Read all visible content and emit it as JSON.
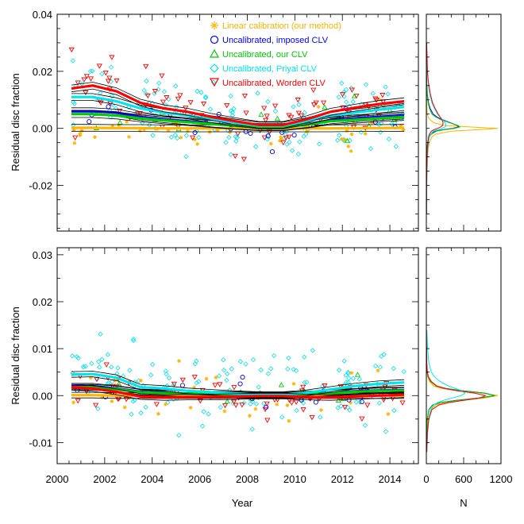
{
  "chart_data": [
    {
      "type": "scatter",
      "panel": "top",
      "title": "",
      "xlabel": "",
      "ylabel": "Residual disc fraction",
      "xlim": [
        2000,
        2015.2
      ],
      "ylim": [
        -0.036,
        0.04
      ],
      "yticks": [
        -0.02,
        0.0,
        0.02,
        0.04
      ],
      "ytick_labels": [
        "-0.02",
        "0.00",
        "0.02",
        "0.04"
      ],
      "legend_position": "top-center",
      "series": [
        {
          "name": "Linear calibration (our method)",
          "marker": "asterisk",
          "color": "#FFB400",
          "trend_x": [
            2000.6,
            2001.5,
            2002.5,
            2003.5,
            2004.5,
            2005.5,
            2006.5,
            2007.5,
            2008.5,
            2009.5,
            2010.5,
            2011.5,
            2012.5,
            2013.5,
            2014.6
          ],
          "trend_y": [
            0.0002,
            0.0002,
            0.0001,
            0.0001,
            0.0,
            0.0,
            0.0,
            0.0,
            0.0,
            0.0,
            0.0,
            0.0,
            0.0001,
            0.0001,
            0.0002
          ]
        },
        {
          "name": "Uncalibrated, imposed CLV",
          "marker": "circle",
          "color": "#0000FF",
          "trend_x": [
            2000.6,
            2001.5,
            2002.5,
            2003.5,
            2004.5,
            2005.5,
            2006.5,
            2007.5,
            2008.5,
            2009.5,
            2010.5,
            2011.5,
            2012.5,
            2013.5,
            2014.6
          ],
          "trend_y": [
            0.006,
            0.006,
            0.0055,
            0.004,
            0.0032,
            0.0025,
            0.0017,
            0.001,
            0.0005,
            0.0005,
            0.0015,
            0.0028,
            0.0035,
            0.004,
            0.0045
          ]
        },
        {
          "name": "Uncalibrated, our CLV",
          "marker": "triangle-up",
          "color": "#00CC00",
          "trend_x": [
            2000.6,
            2001.5,
            2002.5,
            2003.5,
            2004.5,
            2005.5,
            2006.5,
            2007.5,
            2008.5,
            2009.5,
            2010.5,
            2011.5,
            2012.5,
            2013.5,
            2014.6
          ],
          "trend_y": [
            0.005,
            0.005,
            0.0045,
            0.0035,
            0.0028,
            0.0022,
            0.0015,
            0.0009,
            0.0004,
            0.0004,
            0.0013,
            0.0025,
            0.003,
            0.0035,
            0.004
          ]
        },
        {
          "name": "Uncalibrated, Priyal CLV",
          "marker": "diamond",
          "color": "#00E5EE",
          "trend_x": [
            2000.6,
            2001.5,
            2002.5,
            2003.5,
            2004.5,
            2005.5,
            2006.5,
            2007.5,
            2008.5,
            2009.5,
            2010.5,
            2011.5,
            2012.5,
            2013.5,
            2014.6
          ],
          "trend_y": [
            0.011,
            0.011,
            0.0095,
            0.007,
            0.0055,
            0.0045,
            0.0032,
            0.002,
            0.001,
            0.001,
            0.0025,
            0.0045,
            0.0055,
            0.0065,
            0.0075
          ]
        },
        {
          "name": "Uncalibrated, Worden CLV",
          "marker": "triangle-down",
          "color": "#FF0000",
          "trend_x": [
            2000.6,
            2001.5,
            2002.5,
            2003.5,
            2004.5,
            2005.5,
            2006.5,
            2007.5,
            2008.5,
            2009.5,
            2010.5,
            2011.5,
            2012.5,
            2013.5,
            2014.6
          ],
          "trend_y": [
            0.014,
            0.015,
            0.013,
            0.009,
            0.007,
            0.0058,
            0.004,
            0.0025,
            0.0012,
            0.0012,
            0.0032,
            0.0058,
            0.0072,
            0.0085,
            0.0095
          ]
        }
      ]
    },
    {
      "type": "scatter",
      "panel": "bottom",
      "title": "",
      "xlabel": "Year",
      "ylabel": "Residual disc fraction",
      "xlim": [
        2000,
        2015.2
      ],
      "xticks": [
        2000,
        2002,
        2004,
        2006,
        2008,
        2010,
        2012,
        2014
      ],
      "xtick_labels": [
        "2000",
        "2002",
        "2004",
        "2006",
        "2008",
        "2010",
        "2012",
        "2014"
      ],
      "ylim": [
        -0.0145,
        0.0315
      ],
      "yticks": [
        -0.01,
        0.0,
        0.01,
        0.02,
        0.03
      ],
      "ytick_labels": [
        "-0.01",
        "0.00",
        "0.01",
        "0.02",
        "0.03"
      ],
      "series": [
        {
          "name": "Linear calibration (our method)",
          "color": "#FFB400",
          "trend_x": [
            2000.6,
            2001.5,
            2002.5,
            2003.5,
            2004.5,
            2005.5,
            2006.5,
            2007.5,
            2008.5,
            2009.5,
            2010.5,
            2011.5,
            2012.5,
            2013.5,
            2014.6
          ],
          "trend_y": [
            0.0001,
            0.0001,
            0.0,
            0.0,
            0.0,
            0.0,
            0.0,
            0.0,
            0.0,
            0.0,
            0.0,
            0.0,
            0.0,
            0.0,
            0.0
          ]
        },
        {
          "name": "Uncalibrated, imposed CLV",
          "color": "#0000FF",
          "trend_x": [
            2000.6,
            2001.5,
            2002.5,
            2003.5,
            2004.5,
            2005.5,
            2006.5,
            2007.5,
            2008.5,
            2009.5,
            2010.5,
            2011.5,
            2012.5,
            2013.5,
            2014.6
          ],
          "trend_y": [
            0.002,
            0.002,
            0.0015,
            0.0008,
            0.0006,
            0.0004,
            0.0003,
            0.0002,
            0.0001,
            0.0001,
            0.0003,
            0.0006,
            0.0009,
            0.0011,
            0.0012
          ]
        },
        {
          "name": "Uncalibrated, our CLV",
          "color": "#00CC00",
          "trend_x": [
            2000.6,
            2001.5,
            2002.5,
            2003.5,
            2004.5,
            2005.5,
            2006.5,
            2007.5,
            2008.5,
            2009.5,
            2010.5,
            2011.5,
            2012.5,
            2013.5,
            2014.6
          ],
          "trend_y": [
            0.0018,
            0.0018,
            0.0014,
            0.0007,
            0.0005,
            0.0004,
            0.0003,
            0.0002,
            0.0001,
            0.0001,
            0.0003,
            0.0005,
            0.0008,
            0.001,
            0.0011
          ]
        },
        {
          "name": "Uncalibrated, Priyal CLV",
          "color": "#00E5EE",
          "trend_x": [
            2000.6,
            2001.5,
            2002.5,
            2003.5,
            2004.5,
            2005.5,
            2006.5,
            2007.5,
            2008.5,
            2009.5,
            2010.5,
            2011.5,
            2012.5,
            2013.5,
            2014.6
          ],
          "trend_y": [
            0.0045,
            0.0046,
            0.0038,
            0.0018,
            0.0015,
            0.001,
            0.0007,
            0.0004,
            0.0002,
            0.0002,
            0.0006,
            0.0013,
            0.002,
            0.0025,
            0.0028
          ]
        },
        {
          "name": "Uncalibrated, Worden CLV",
          "color": "#FF0000",
          "trend_x": [
            2000.6,
            2001.5,
            2002.5,
            2003.5,
            2004.5,
            2005.5,
            2006.5,
            2007.5,
            2008.5,
            2009.5,
            2010.5,
            2011.5,
            2012.5,
            2013.5,
            2014.6
          ],
          "trend_y": [
            0.0018,
            0.0015,
            0.0008,
            -0.0002,
            -0.0004,
            -0.0003,
            -0.0003,
            -0.0002,
            -0.0001,
            -0.0001,
            -0.0003,
            -0.0004,
            -0.0002,
            0.0,
            0.0002
          ]
        }
      ]
    },
    {
      "type": "line",
      "panel": "top-histogram",
      "xlabel": "",
      "xlim": [
        0,
        1200
      ],
      "bin_centers": [
        -0.03,
        -0.02,
        -0.015,
        -0.01,
        -0.007,
        -0.005,
        -0.003,
        -0.002,
        -0.001,
        -0.0005,
        0.0,
        0.0005,
        0.001,
        0.002,
        0.003,
        0.004,
        0.005,
        0.007,
        0.009,
        0.012,
        0.016,
        0.02,
        0.03
      ],
      "series": [
        {
          "name": "Linear calibration (our method)",
          "color": "#FFB400",
          "values": [
            2,
            5,
            10,
            20,
            30,
            50,
            90,
            150,
            400,
            800,
            1150,
            700,
            300,
            120,
            60,
            30,
            15,
            8,
            5,
            3,
            2,
            1,
            0
          ]
        },
        {
          "name": "Uncalibrated, imposed CLV",
          "color": "#0000FF",
          "values": [
            0,
            1,
            3,
            6,
            12,
            20,
            40,
            70,
            140,
            250,
            420,
            520,
            500,
            380,
            260,
            170,
            110,
            60,
            35,
            15,
            6,
            2,
            0
          ]
        },
        {
          "name": "Uncalibrated, our CLV",
          "color": "#00CC00",
          "values": [
            0,
            1,
            3,
            6,
            12,
            22,
            45,
            80,
            160,
            280,
            450,
            540,
            510,
            370,
            240,
            150,
            90,
            50,
            28,
            12,
            5,
            2,
            0
          ]
        },
        {
          "name": "Uncalibrated, Priyal CLV",
          "color": "#00E5EE",
          "values": [
            5,
            8,
            12,
            18,
            25,
            35,
            50,
            70,
            110,
            170,
            250,
            300,
            320,
            300,
            260,
            220,
            180,
            130,
            90,
            55,
            30,
            15,
            5
          ]
        },
        {
          "name": "Uncalibrated, Worden CLV",
          "color": "#FF0000",
          "values": [
            2,
            4,
            8,
            12,
            18,
            25,
            35,
            50,
            80,
            120,
            180,
            230,
            260,
            270,
            250,
            220,
            190,
            140,
            100,
            65,
            35,
            18,
            5
          ]
        }
      ]
    },
    {
      "type": "line",
      "panel": "bottom-histogram",
      "xlabel": "N",
      "xlim": [
        0,
        1200
      ],
      "xticks": [
        0,
        600,
        1200
      ],
      "xtick_labels": [
        "0",
        "600",
        "1200"
      ],
      "bin_centers": [
        -0.012,
        -0.008,
        -0.005,
        -0.003,
        -0.002,
        -0.0015,
        -0.001,
        -0.0005,
        0.0,
        0.0005,
        0.001,
        0.0015,
        0.002,
        0.003,
        0.004,
        0.005,
        0.007,
        0.01,
        0.014
      ],
      "series": [
        {
          "name": "Linear calibration (our method)",
          "color": "#FFB400",
          "values": [
            5,
            12,
            30,
            70,
            150,
            300,
            600,
            950,
            1150,
            900,
            500,
            250,
            120,
            50,
            20,
            10,
            5,
            2,
            0
          ]
        },
        {
          "name": "Uncalibrated, imposed CLV",
          "color": "#0000FF",
          "values": [
            2,
            5,
            15,
            40,
            100,
            220,
            480,
            850,
            1100,
            950,
            600,
            320,
            170,
            70,
            30,
            14,
            6,
            2,
            0
          ]
        },
        {
          "name": "Uncalibrated, our CLV",
          "color": "#00CC00",
          "values": [
            2,
            5,
            15,
            42,
            105,
            230,
            500,
            880,
            1100,
            940,
            580,
            310,
            160,
            65,
            28,
            12,
            5,
            2,
            0
          ]
        },
        {
          "name": "Uncalibrated, Priyal CLV",
          "color": "#00E5EE",
          "values": [
            10,
            20,
            40,
            70,
            120,
            180,
            280,
            420,
            560,
            620,
            580,
            470,
            360,
            220,
            130,
            80,
            40,
            20,
            8
          ]
        },
        {
          "name": "Uncalibrated, Worden CLV",
          "color": "#FF0000",
          "values": [
            5,
            15,
            40,
            90,
            200,
            360,
            600,
            860,
            950,
            780,
            500,
            300,
            170,
            80,
            35,
            16,
            7,
            3,
            1
          ]
        }
      ]
    }
  ]
}
